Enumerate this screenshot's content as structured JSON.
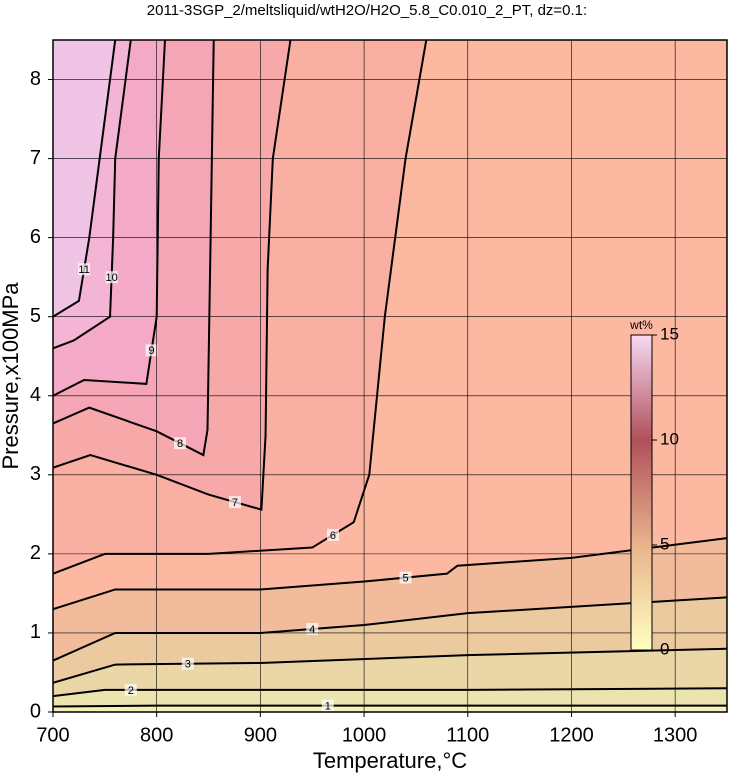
{
  "chart_data": {
    "type": "contour",
    "title": "2011-3SGP_2/meltsliquid/wtH2O/H2O_5.8_C0.010_2_PT, dz=0.1:",
    "xlabel": "Temperature,°C",
    "ylabel": "Pressure,x100MPa",
    "xlim": [
      700,
      1350
    ],
    "ylim": [
      0,
      8.5
    ],
    "xticks": [
      700,
      800,
      900,
      1000,
      1100,
      1200,
      1300
    ],
    "yticks": [
      0,
      1,
      2,
      3,
      4,
      5,
      6,
      7,
      8
    ],
    "grid": true,
    "background": "#fcb8a0",
    "contours": [
      {
        "level": 6,
        "fill_side": "upper-left",
        "fill": "#f9b0a2",
        "x": [
          700,
          750,
          850,
          950,
          990,
          1005,
          1020,
          1040,
          1060
        ],
        "y": [
          1.75,
          2.0,
          2.0,
          2.08,
          2.4,
          3.0,
          5.0,
          7.0,
          8.5
        ]
      },
      {
        "level": 7,
        "fill_side": "upper-left",
        "fill": "#f7a8a8",
        "x": [
          700,
          736,
          800,
          850,
          901,
          905,
          907,
          912,
          929
        ],
        "y": [
          3.09,
          3.25,
          3.0,
          2.75,
          2.56,
          3.5,
          5.6,
          7.0,
          8.5
        ]
      },
      {
        "level": 8,
        "fill_side": "upper-left",
        "fill": "#f5a6b6",
        "x": [
          700,
          735,
          800,
          845,
          849,
          852,
          855
        ],
        "y": [
          3.65,
          3.85,
          3.55,
          3.25,
          3.57,
          6.0,
          8.5
        ]
      },
      {
        "level": 9,
        "fill_side": "upper-left",
        "fill": "#f4aac6",
        "x": [
          700,
          730,
          790,
          800,
          802,
          808
        ],
        "y": [
          4.0,
          4.2,
          4.15,
          5.0,
          7.0,
          8.5
        ]
      },
      {
        "level": 10,
        "fill_side": "upper-left",
        "fill": "#f4b4d6",
        "x": [
          700,
          720,
          755,
          758,
          760,
          775
        ],
        "y": [
          4.6,
          4.7,
          5.0,
          6.0,
          7.0,
          8.5
        ]
      },
      {
        "level": 11,
        "fill_side": "upper-left",
        "fill": "#f0c4e4",
        "x": [
          700,
          725,
          735,
          745,
          760
        ],
        "y": [
          5.0,
          5.2,
          6.0,
          7.0,
          8.5
        ]
      },
      {
        "level": 5,
        "fill_side": "lower",
        "fill": "#f2bc9c",
        "x": [
          700,
          760,
          900,
          1000,
          1080,
          1090,
          1200,
          1350
        ],
        "y": [
          1.3,
          1.55,
          1.55,
          1.65,
          1.75,
          1.85,
          1.95,
          2.2
        ]
      },
      {
        "level": 4,
        "fill_side": "lower",
        "fill": "#eccaa0",
        "x": [
          700,
          760,
          900,
          1000,
          1100,
          1350
        ],
        "y": [
          0.65,
          1.0,
          1.0,
          1.1,
          1.25,
          1.45
        ]
      },
      {
        "level": 3,
        "fill_side": "lower",
        "fill": "#ead6a6",
        "x": [
          700,
          760,
          900,
          1100,
          1350
        ],
        "y": [
          0.37,
          0.6,
          0.62,
          0.72,
          0.8
        ]
      },
      {
        "level": 2,
        "fill_side": "lower",
        "fill": "#ece4ae",
        "x": [
          700,
          750,
          800,
          1100,
          1350
        ],
        "y": [
          0.2,
          0.28,
          0.28,
          0.28,
          0.3
        ]
      },
      {
        "level": 1,
        "fill_side": "lower",
        "fill": "#f4f0b8",
        "x": [
          700,
          800,
          1130,
          1350
        ],
        "y": [
          0.07,
          0.08,
          0.08,
          0.08
        ]
      }
    ],
    "colorbar": {
      "label": "wt%",
      "lim": [
        0,
        15
      ],
      "ticks": [
        0,
        5,
        10,
        15
      ],
      "colors": [
        "#ffffc0",
        "#e8b48c",
        "#b0505a",
        "#f8d8f4"
      ]
    }
  }
}
